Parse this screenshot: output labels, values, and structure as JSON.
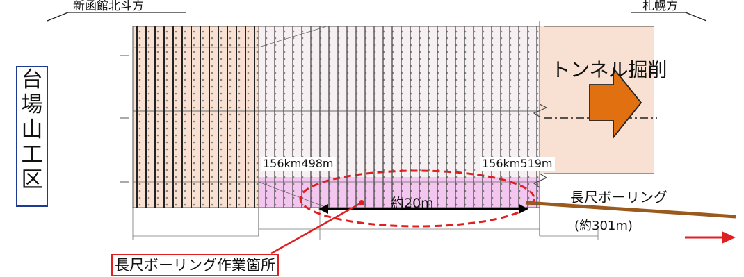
{
  "direction_left": "新函館北斗方",
  "direction_right": "札幌方",
  "work_area": "台場山工区",
  "tunnel_excavation": "トンネル掘削",
  "station_start": "156km498m",
  "station_end": "156km519m",
  "distance": "約20m",
  "boring_label": "長尺ボーリング",
  "boring_length": "(約301m)",
  "boring_site": "長尺ボーリング作業箇所",
  "colors": {
    "excavated": "#f8e1d2",
    "boring_zone": "#f3c6ef",
    "arrow": "#e07010",
    "red": "#e02020",
    "boring_line": "#9a5a1e",
    "frame": "#1f3a93"
  }
}
